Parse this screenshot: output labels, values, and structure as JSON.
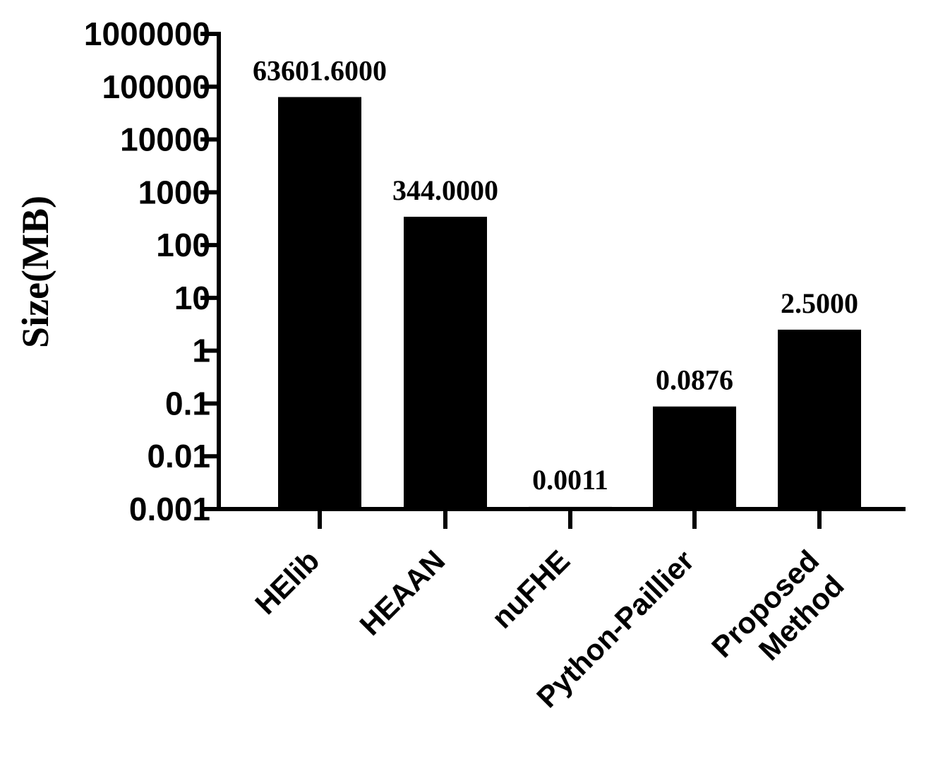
{
  "chart_data": {
    "type": "bar",
    "title": "",
    "xlabel": "",
    "ylabel": "Size(MB)",
    "yscale": "log",
    "ylim": [
      0.001,
      1000000
    ],
    "yticks": [
      0.001,
      0.01,
      0.1,
      1,
      10,
      100,
      1000,
      10000,
      100000,
      1000000
    ],
    "ytick_labels": [
      "0.001",
      "0.01",
      "0.1",
      "1",
      "10",
      "100",
      "1000",
      "10000",
      "100000",
      "1000000"
    ],
    "categories": [
      [
        "HElib"
      ],
      [
        "HEAAN"
      ],
      [
        "nuFHE"
      ],
      [
        "Python-Paillier"
      ],
      [
        "Proposed",
        "Method"
      ]
    ],
    "values": [
      63601.6,
      344.0,
      0.0011,
      0.0876,
      2.5
    ],
    "value_labels": [
      "63601.6000",
      "344.0000",
      "0.0011",
      "0.0876",
      "2.5000"
    ],
    "grid": false,
    "legend": "none",
    "bar_color": "#000000"
  }
}
